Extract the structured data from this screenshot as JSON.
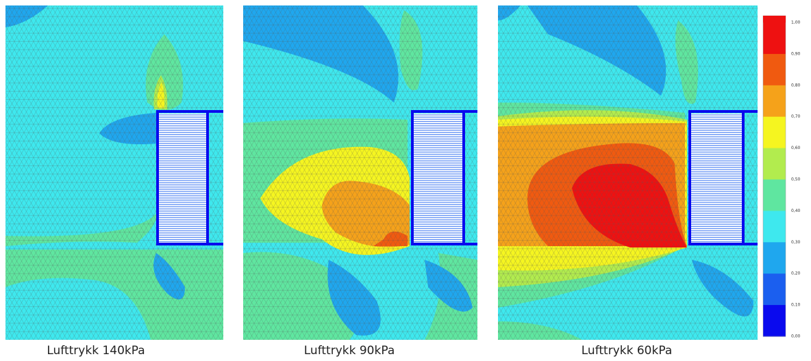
{
  "panels": [
    {
      "caption": "Lufttrykk 140kPa"
    },
    {
      "caption": "Lufttrykk 90kPa"
    },
    {
      "caption": "Lufttrykk 60kPa"
    }
  ],
  "colorbar": {
    "labels": [
      "1,00",
      "0,90",
      "0,80",
      "0,70",
      "0,60",
      "0,50",
      "0,40",
      "0,30",
      "0,20",
      "0,10",
      "0,00"
    ],
    "colors": [
      "#ee1111",
      "#f05a10",
      "#f5a21a",
      "#f5f520",
      "#b2ec4e",
      "#5fe6a0",
      "#3ee8ee",
      "#1fa7ee",
      "#1b5fef",
      "#0a0aee"
    ]
  }
}
